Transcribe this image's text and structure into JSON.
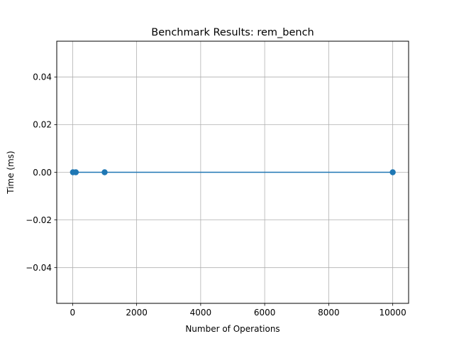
{
  "chart_data": {
    "type": "line",
    "title": "Benchmark Results: rem_bench",
    "xlabel": "Number of Operations",
    "ylabel": "Time (ms)",
    "x": [
      10,
      100,
      1000,
      10000
    ],
    "series": [
      {
        "values": [
          0,
          0,
          0,
          0
        ],
        "color": "#1f77b4",
        "marker": "circle"
      }
    ],
    "xlim": [
      -495.5,
      10495.5
    ],
    "ylim": [
      -0.055,
      0.055
    ],
    "xticks": [
      0,
      2000,
      4000,
      6000,
      8000,
      10000
    ],
    "xtick_labels": [
      "0",
      "2000",
      "4000",
      "6000",
      "8000",
      "10000"
    ],
    "yticks": [
      -0.04,
      -0.02,
      0.0,
      0.02,
      0.04
    ],
    "ytick_labels": [
      "−0.04",
      "−0.02",
      "0.00",
      "0.02",
      "0.04"
    ],
    "grid": true,
    "colors": {
      "line": "#1f77b4",
      "grid": "#b0b0b0",
      "axes": "#000000"
    }
  }
}
